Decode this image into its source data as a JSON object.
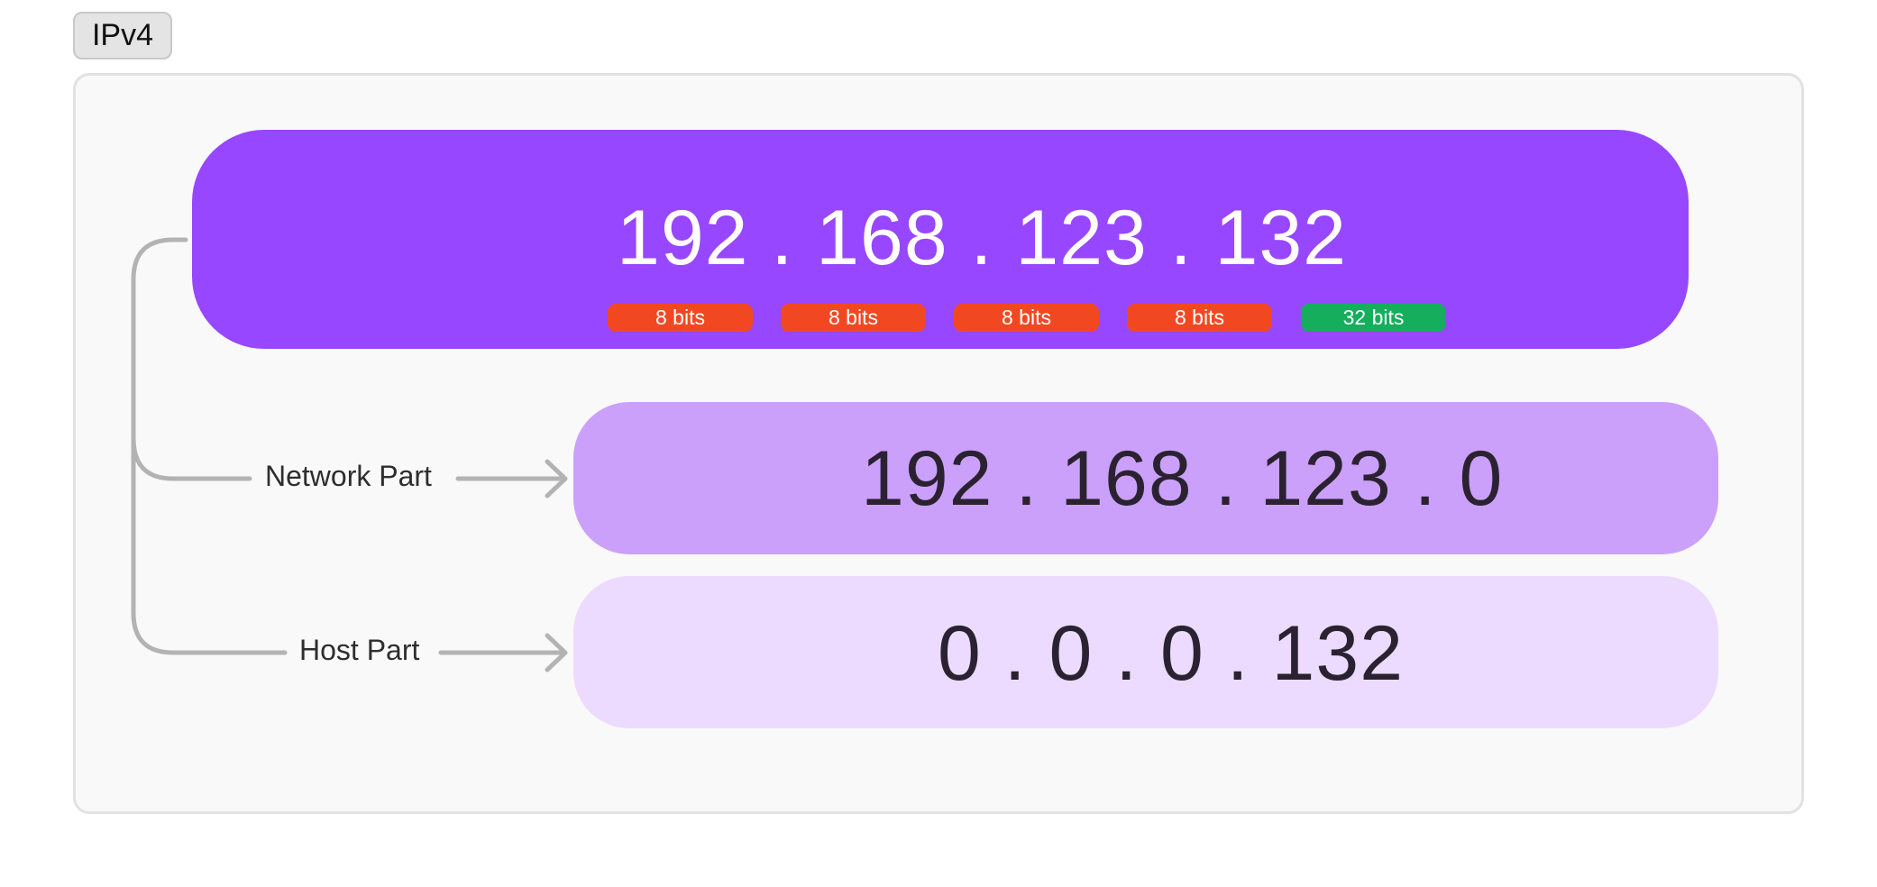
{
  "title_tag": "IPv4",
  "main_address": {
    "text": "192 . 168 . 123 . 132",
    "bit_badges": [
      "8 bits",
      "8 bits",
      "8 bits",
      "8 bits"
    ],
    "total_badge": "32 bits"
  },
  "network": {
    "label": "Network Part",
    "address": "192 . 168 . 123 . 0"
  },
  "host": {
    "label": "Host Part",
    "address": "0 . 0 . 0 . 132"
  },
  "colors": {
    "main_box": "#9747ff",
    "network_box": "#cba0fa",
    "host_box": "#ecdbff",
    "bit_badge": "#f24822",
    "total_badge": "#14ae5c",
    "connector": "#b3b3b3"
  }
}
